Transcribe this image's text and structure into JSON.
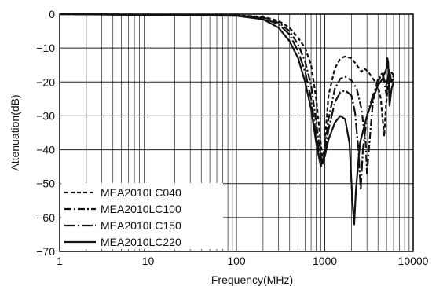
{
  "chart_data": {
    "type": "line",
    "xlabel": "Frequency(MHz)",
    "ylabel": "Attenuation(dB)",
    "xscale": "log",
    "xlim": [
      1,
      10000
    ],
    "ylim": [
      -70,
      0
    ],
    "x_ticks": [
      "1",
      "10",
      "100",
      "1000",
      "10000"
    ],
    "y_ticks": [
      "0",
      "−10",
      "−20",
      "−30",
      "−40",
      "−50",
      "−60",
      "−70"
    ],
    "grid": true,
    "legend_position": "bottom-left",
    "series": [
      {
        "name": "MEA2010LC040",
        "dash": "short-dash",
        "points": [
          [
            1,
            0
          ],
          [
            100,
            -0.3
          ],
          [
            200,
            -0.8
          ],
          [
            300,
            -2
          ],
          [
            400,
            -4
          ],
          [
            500,
            -7
          ],
          [
            600,
            -10
          ],
          [
            700,
            -15
          ],
          [
            800,
            -25
          ],
          [
            900,
            -38
          ],
          [
            950,
            -44
          ],
          [
            1000,
            -38
          ],
          [
            1100,
            -24
          ],
          [
            1300,
            -16
          ],
          [
            1500,
            -13
          ],
          [
            1700,
            -12.5
          ],
          [
            2000,
            -13
          ],
          [
            2300,
            -15
          ],
          [
            2600,
            -17
          ],
          [
            2800,
            -16
          ],
          [
            3100,
            -17
          ],
          [
            3500,
            -19
          ],
          [
            4000,
            -21
          ],
          [
            4300,
            -25
          ],
          [
            4700,
            -36
          ],
          [
            4900,
            -28
          ],
          [
            5200,
            -20
          ],
          [
            5600,
            -17
          ],
          [
            6000,
            -18
          ]
        ]
      },
      {
        "name": "MEA2010LC100",
        "dash": "dash-dot",
        "points": [
          [
            1,
            0
          ],
          [
            100,
            -0.3
          ],
          [
            200,
            -1
          ],
          [
            300,
            -2.5
          ],
          [
            400,
            -5
          ],
          [
            500,
            -9
          ],
          [
            600,
            -14
          ],
          [
            700,
            -21
          ],
          [
            800,
            -32
          ],
          [
            900,
            -42
          ],
          [
            950,
            -44
          ],
          [
            1000,
            -40
          ],
          [
            1100,
            -31
          ],
          [
            1300,
            -22
          ],
          [
            1500,
            -19
          ],
          [
            1700,
            -18.5
          ],
          [
            2000,
            -19.5
          ],
          [
            2300,
            -22
          ],
          [
            2600,
            -28
          ],
          [
            2900,
            -38
          ],
          [
            3000,
            -47
          ],
          [
            3200,
            -38
          ],
          [
            3500,
            -26
          ],
          [
            4000,
            -19
          ],
          [
            4500,
            -18
          ],
          [
            5000,
            -21
          ],
          [
            5300,
            -18
          ],
          [
            5700,
            -20
          ],
          [
            6000,
            -19
          ]
        ]
      },
      {
        "name": "MEA2010LC150",
        "dash": "long-dash-dot",
        "points": [
          [
            1,
            0
          ],
          [
            100,
            -0.4
          ],
          [
            200,
            -1.2
          ],
          [
            300,
            -3
          ],
          [
            400,
            -6
          ],
          [
            500,
            -11
          ],
          [
            600,
            -17
          ],
          [
            700,
            -25
          ],
          [
            800,
            -36
          ],
          [
            900,
            -43
          ],
          [
            950,
            -44
          ],
          [
            1000,
            -41
          ],
          [
            1100,
            -34
          ],
          [
            1300,
            -26
          ],
          [
            1500,
            -23
          ],
          [
            1700,
            -22.5
          ],
          [
            2000,
            -24
          ],
          [
            2200,
            -29
          ],
          [
            2400,
            -40
          ],
          [
            2550,
            -52
          ],
          [
            2700,
            -40
          ],
          [
            3000,
            -30
          ],
          [
            3500,
            -24
          ],
          [
            4000,
            -20
          ],
          [
            4500,
            -17
          ],
          [
            5000,
            -24
          ],
          [
            5300,
            -16
          ],
          [
            5700,
            -20
          ],
          [
            6000,
            -18
          ]
        ]
      },
      {
        "name": "MEA2010LC220",
        "dash": "solid",
        "points": [
          [
            1,
            0
          ],
          [
            100,
            -0.5
          ],
          [
            200,
            -1.5
          ],
          [
            300,
            -4
          ],
          [
            400,
            -8
          ],
          [
            500,
            -13
          ],
          [
            600,
            -20
          ],
          [
            700,
            -28
          ],
          [
            800,
            -38
          ],
          [
            900,
            -45
          ],
          [
            950,
            -43
          ],
          [
            1000,
            -42
          ],
          [
            1100,
            -37
          ],
          [
            1300,
            -32
          ],
          [
            1500,
            -30
          ],
          [
            1700,
            -31
          ],
          [
            1900,
            -38
          ],
          [
            2050,
            -55
          ],
          [
            2150,
            -62
          ],
          [
            2250,
            -52
          ],
          [
            2500,
            -38
          ],
          [
            3000,
            -30
          ],
          [
            3500,
            -25
          ],
          [
            4000,
            -21
          ],
          [
            4500,
            -19
          ],
          [
            5000,
            -16
          ],
          [
            5100,
            -13
          ],
          [
            5200,
            -14
          ],
          [
            5400,
            -27
          ],
          [
            5700,
            -22
          ],
          [
            6000,
            -20
          ]
        ]
      }
    ]
  }
}
